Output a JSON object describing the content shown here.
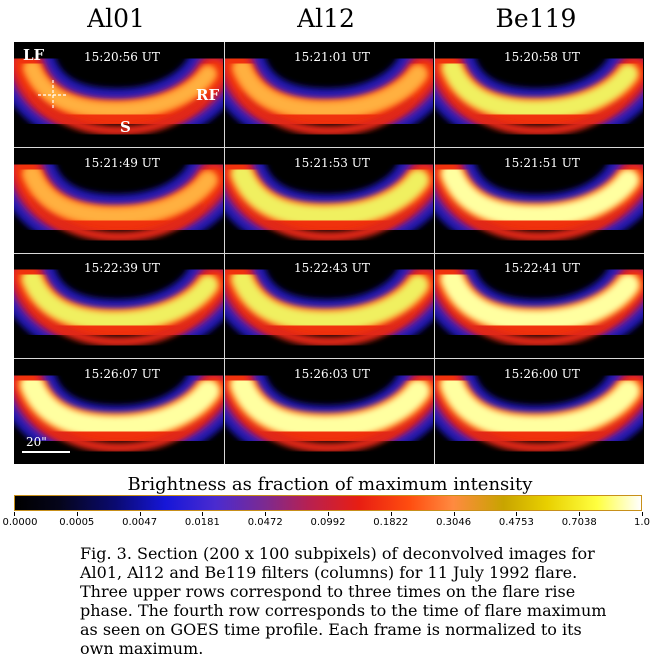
{
  "columns": [
    "Al01",
    "Al12",
    "Be119"
  ],
  "rows": [
    [
      "15:20:56 UT",
      "15:21:01 UT",
      "15:20:58 UT"
    ],
    [
      "15:21:49 UT",
      "15:21:53 UT",
      "15:21:51 UT"
    ],
    [
      "15:22:39 UT",
      "15:22:43 UT",
      "15:22:41 UT"
    ],
    [
      "15:26:07 UT",
      "15:26:03 UT",
      "15:26:00 UT"
    ]
  ],
  "brightness": [
    [
      0.45,
      0.55,
      0.75
    ],
    [
      0.55,
      0.85,
      0.9
    ],
    [
      0.75,
      0.8,
      0.95
    ],
    [
      1.0,
      1.0,
      1.0
    ]
  ],
  "annotations": {
    "lf": "LF",
    "rf": "RF",
    "s": "S",
    "scale": "20\""
  },
  "colorbar": {
    "title": "Brightness as fraction of maximum intensity",
    "ticks": [
      "0.0000",
      "0.0005",
      "0.0047",
      "0.0181",
      "0.0472",
      "0.0992",
      "0.1822",
      "0.3046",
      "0.4753",
      "0.7038",
      "1.0"
    ]
  },
  "caption": "Fig. 3. Section (200 x 100 subpixels) of deconvolved images for Al01, Al12 and Be119 filters (columns) for 11 July 1992 flare. Three upper rows correspond to three times on the flare rise phase. The fourth row corresponds to the time of flare maximum as seen on GOES time profile. Each frame is normalized to its own maximum."
}
